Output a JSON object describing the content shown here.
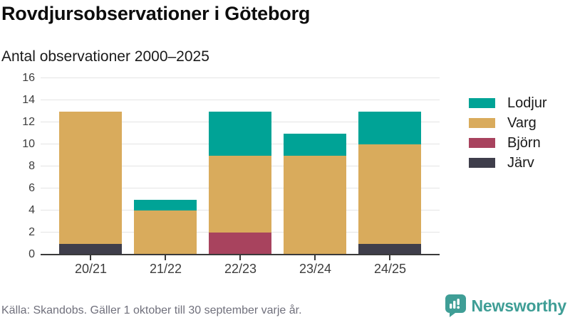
{
  "header": {
    "title": "Rovdjursobservationer i Göteborg",
    "subtitle": "Antal observationer 2000–2025"
  },
  "chart_data": {
    "type": "bar",
    "stacked": true,
    "title": "Rovdjursobservationer i Göteborg",
    "subtitle": "Antal observationer 2000–2025",
    "categories": [
      "20/21",
      "21/22",
      "22/23",
      "23/24",
      "24/25"
    ],
    "series": [
      {
        "name": "Lodjur",
        "color": "#00a396",
        "values": [
          0,
          1,
          4,
          2,
          3
        ]
      },
      {
        "name": "Varg",
        "color": "#d9ab5c",
        "values": [
          12,
          4,
          7,
          9,
          9
        ]
      },
      {
        "name": "Björn",
        "color": "#a8435e",
        "values": [
          0,
          0,
          2,
          0,
          0
        ]
      },
      {
        "name": "Järv",
        "color": "#3f3e4b",
        "values": [
          1,
          0,
          0,
          0,
          1
        ]
      }
    ],
    "stack_order_bottom_to_top": [
      "Järv",
      "Björn",
      "Varg",
      "Lodjur"
    ],
    "totals": [
      13,
      5,
      13,
      11,
      13
    ],
    "ylim": [
      0,
      16
    ],
    "ytick_step": 2,
    "grid": true,
    "legend_position": "right",
    "colors": {
      "grid": "#e4e4e4",
      "axis": "#3a3a3a",
      "tick_text": "#3c3c3c"
    }
  },
  "footer": {
    "source": "Källa: Skandobs. Gäller 1 oktober till 30 september varje år.",
    "brand": "Newsworthy",
    "brand_color": "#3f9e96"
  }
}
